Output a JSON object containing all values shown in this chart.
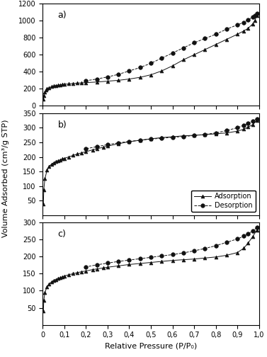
{
  "subplot_a": {
    "label": "a)",
    "adsorption_x": [
      0.003,
      0.005,
      0.01,
      0.015,
      0.02,
      0.03,
      0.04,
      0.05,
      0.06,
      0.07,
      0.08,
      0.09,
      0.1,
      0.12,
      0.14,
      0.16,
      0.18,
      0.2,
      0.25,
      0.3,
      0.35,
      0.4,
      0.45,
      0.5,
      0.55,
      0.6,
      0.65,
      0.7,
      0.75,
      0.8,
      0.85,
      0.9,
      0.93,
      0.95,
      0.97,
      0.98,
      0.99
    ],
    "adsorption_y": [
      80,
      120,
      165,
      185,
      200,
      215,
      225,
      233,
      238,
      242,
      246,
      250,
      253,
      258,
      263,
      267,
      270,
      273,
      280,
      290,
      300,
      315,
      335,
      365,
      410,
      470,
      540,
      600,
      660,
      720,
      780,
      840,
      880,
      910,
      960,
      1000,
      1060
    ],
    "desorption_x": [
      0.99,
      0.98,
      0.97,
      0.95,
      0.93,
      0.9,
      0.85,
      0.8,
      0.75,
      0.7,
      0.65,
      0.6,
      0.55,
      0.5,
      0.45,
      0.4,
      0.35,
      0.3,
      0.25,
      0.2
    ],
    "desorption_y": [
      1080,
      1060,
      1040,
      1010,
      980,
      950,
      900,
      840,
      790,
      740,
      680,
      620,
      560,
      500,
      450,
      410,
      370,
      340,
      315,
      295
    ],
    "ylim": [
      0,
      1200
    ],
    "yticks": [
      0,
      200,
      400,
      600,
      800,
      1000,
      1200
    ]
  },
  "subplot_b": {
    "label": "b)",
    "adsorption_x": [
      0.003,
      0.005,
      0.01,
      0.02,
      0.03,
      0.04,
      0.05,
      0.06,
      0.07,
      0.08,
      0.09,
      0.1,
      0.12,
      0.14,
      0.16,
      0.18,
      0.2,
      0.23,
      0.25,
      0.28,
      0.3,
      0.35,
      0.4,
      0.45,
      0.5,
      0.55,
      0.6,
      0.65,
      0.7,
      0.75,
      0.8,
      0.85,
      0.9,
      0.93,
      0.95,
      0.97,
      0.99
    ],
    "adsorption_y": [
      40,
      88,
      125,
      155,
      168,
      175,
      180,
      184,
      187,
      190,
      193,
      195,
      200,
      205,
      210,
      214,
      218,
      224,
      228,
      233,
      237,
      245,
      252,
      257,
      262,
      266,
      269,
      272,
      274,
      276,
      279,
      282,
      288,
      295,
      302,
      310,
      325
    ],
    "desorption_x": [
      0.99,
      0.97,
      0.95,
      0.93,
      0.9,
      0.85,
      0.8,
      0.75,
      0.7,
      0.65,
      0.6,
      0.55,
      0.5,
      0.45,
      0.4,
      0.35,
      0.3,
      0.25,
      0.2
    ],
    "desorption_y": [
      330,
      322,
      315,
      308,
      300,
      290,
      282,
      277,
      273,
      270,
      267,
      264,
      261,
      257,
      253,
      248,
      242,
      235,
      228
    ],
    "ylim": [
      0,
      350
    ],
    "yticks": [
      50,
      100,
      150,
      200,
      250,
      300,
      350
    ]
  },
  "subplot_c": {
    "label": "c)",
    "adsorption_x": [
      0.003,
      0.005,
      0.01,
      0.02,
      0.03,
      0.04,
      0.05,
      0.06,
      0.07,
      0.08,
      0.09,
      0.1,
      0.12,
      0.14,
      0.16,
      0.18,
      0.2,
      0.23,
      0.25,
      0.28,
      0.3,
      0.35,
      0.4,
      0.45,
      0.5,
      0.55,
      0.6,
      0.65,
      0.7,
      0.75,
      0.8,
      0.85,
      0.9,
      0.93,
      0.95,
      0.97,
      0.99
    ],
    "adsorption_y": [
      40,
      72,
      95,
      112,
      120,
      126,
      130,
      133,
      136,
      138,
      141,
      143,
      147,
      150,
      153,
      156,
      158,
      162,
      164,
      167,
      169,
      173,
      177,
      180,
      183,
      186,
      189,
      191,
      193,
      196,
      199,
      204,
      212,
      225,
      240,
      258,
      278
    ],
    "desorption_x": [
      0.99,
      0.97,
      0.95,
      0.93,
      0.9,
      0.85,
      0.8,
      0.75,
      0.7,
      0.65,
      0.6,
      0.55,
      0.5,
      0.45,
      0.4,
      0.35,
      0.3,
      0.25,
      0.2
    ],
    "desorption_y": [
      285,
      275,
      267,
      260,
      252,
      242,
      232,
      224,
      217,
      211,
      206,
      202,
      198,
      194,
      190,
      186,
      181,
      176,
      170
    ],
    "ylim": [
      0,
      300
    ],
    "yticks": [
      50,
      100,
      150,
      200,
      250,
      300
    ]
  },
  "xlabel": "Relative Pressure (P/P₀)",
  "ylabel": "Volume Adsorbed (cm³/g STP)",
  "adsorption_color": "#111111",
  "desorption_color": "#111111",
  "xlim": [
    0,
    1.0
  ],
  "xticks": [
    0.0,
    0.1,
    0.2,
    0.3,
    0.4,
    0.5,
    0.6,
    0.7,
    0.8,
    0.9,
    1.0
  ],
  "xticklabels": [
    "0",
    "0,1",
    "0,2",
    "0,3",
    "0,4",
    "0,5",
    "0,6",
    "0,7",
    "0,8",
    "0,9",
    "1,0"
  ]
}
